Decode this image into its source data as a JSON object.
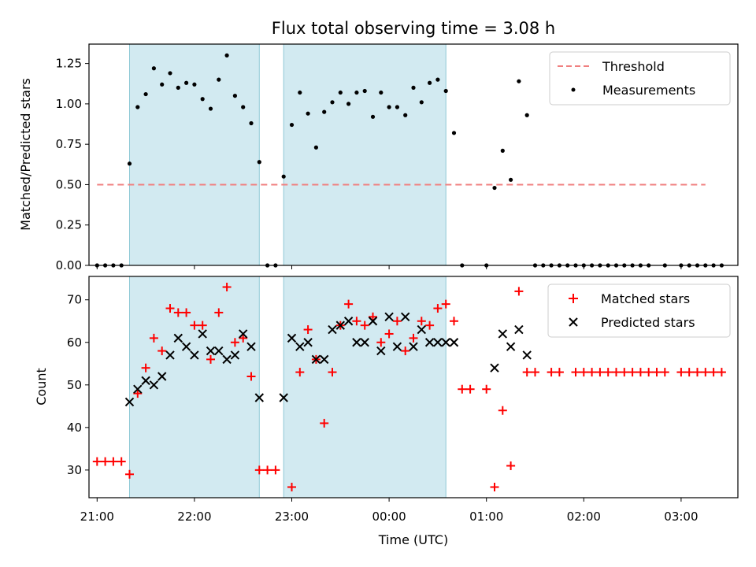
{
  "chart_data": [
    {
      "type": "scatter",
      "title": "Flux total observing time = 3.08 h",
      "ylabel": "Matched/Predicted stars",
      "xlabel": "",
      "ylim": [
        0,
        1.37
      ],
      "xlim": [
        "20:55",
        "03:35"
      ],
      "y_ticks": [
        "0.00",
        "0.25",
        "0.50",
        "0.75",
        "1.00",
        "1.25"
      ],
      "shaded_intervals": [
        [
          "21:20",
          "22:40"
        ],
        [
          "22:55",
          "00:35"
        ]
      ],
      "legend_position": "top-right",
      "threshold": {
        "name": "Threshold",
        "value": 0.5,
        "x_range": [
          "21:00",
          "03:15"
        ],
        "color": "#f08080"
      },
      "series": [
        {
          "name": "Measurements",
          "color": "#000000",
          "points": [
            [
              "21:00",
              0.0
            ],
            [
              "21:05",
              0.0
            ],
            [
              "21:10",
              0.0
            ],
            [
              "21:15",
              0.0
            ],
            [
              "21:20",
              0.63
            ],
            [
              "21:25",
              0.98
            ],
            [
              "21:30",
              1.06
            ],
            [
              "21:35",
              1.22
            ],
            [
              "21:40",
              1.12
            ],
            [
              "21:45",
              1.19
            ],
            [
              "21:50",
              1.1
            ],
            [
              "21:55",
              1.13
            ],
            [
              "22:00",
              1.12
            ],
            [
              "22:05",
              1.03
            ],
            [
              "22:10",
              0.97
            ],
            [
              "22:15",
              1.15
            ],
            [
              "22:20",
              1.3
            ],
            [
              "22:25",
              1.05
            ],
            [
              "22:30",
              0.98
            ],
            [
              "22:35",
              0.88
            ],
            [
              "22:40",
              0.64
            ],
            [
              "22:45",
              0.0
            ],
            [
              "22:50",
              0.0
            ],
            [
              "22:55",
              0.55
            ],
            [
              "23:00",
              0.87
            ],
            [
              "23:05",
              1.07
            ],
            [
              "23:10",
              0.94
            ],
            [
              "23:15",
              0.73
            ],
            [
              "23:20",
              0.95
            ],
            [
              "23:25",
              1.01
            ],
            [
              "23:30",
              1.07
            ],
            [
              "23:35",
              1.0
            ],
            [
              "23:40",
              1.07
            ],
            [
              "23:45",
              1.08
            ],
            [
              "23:50",
              0.92
            ],
            [
              "23:55",
              1.07
            ],
            [
              "00:00",
              0.98
            ],
            [
              "00:05",
              0.98
            ],
            [
              "00:10",
              0.93
            ],
            [
              "00:15",
              1.1
            ],
            [
              "00:20",
              1.01
            ],
            [
              "00:25",
              1.13
            ],
            [
              "00:30",
              1.15
            ],
            [
              "00:35",
              1.08
            ],
            [
              "00:40",
              0.82
            ],
            [
              "00:45",
              0.0
            ],
            [
              "01:00",
              0.0
            ],
            [
              "01:05",
              0.48
            ],
            [
              "01:10",
              0.71
            ],
            [
              "01:15",
              0.53
            ],
            [
              "01:20",
              1.14
            ],
            [
              "01:25",
              0.93
            ],
            [
              "01:30",
              0.0
            ],
            [
              "01:35",
              0.0
            ],
            [
              "01:40",
              0.0
            ],
            [
              "01:45",
              0.0
            ],
            [
              "01:50",
              0.0
            ],
            [
              "01:55",
              0.0
            ],
            [
              "02:00",
              0.0
            ],
            [
              "02:05",
              0.0
            ],
            [
              "02:10",
              0.0
            ],
            [
              "02:15",
              0.0
            ],
            [
              "02:20",
              0.0
            ],
            [
              "02:25",
              0.0
            ],
            [
              "02:30",
              0.0
            ],
            [
              "02:35",
              0.0
            ],
            [
              "02:40",
              0.0
            ],
            [
              "02:50",
              0.0
            ],
            [
              "03:00",
              0.0
            ],
            [
              "03:05",
              0.0
            ],
            [
              "03:10",
              0.0
            ],
            [
              "03:15",
              0.0
            ],
            [
              "03:20",
              0.0
            ],
            [
              "03:25",
              0.0
            ]
          ]
        }
      ]
    },
    {
      "type": "scatter",
      "title": "",
      "xlabel": "Time (UTC)",
      "ylabel": "Count",
      "ylim": [
        23.5,
        75.5
      ],
      "xlim": [
        "20:55",
        "03:35"
      ],
      "x_ticks": [
        "21:00",
        "22:00",
        "23:00",
        "00:00",
        "01:00",
        "02:00",
        "03:00"
      ],
      "y_ticks": [
        "30",
        "40",
        "50",
        "60",
        "70"
      ],
      "shaded_intervals": [
        [
          "21:20",
          "22:40"
        ],
        [
          "22:55",
          "00:35"
        ]
      ],
      "legend_position": "top-right",
      "series": [
        {
          "name": "Matched stars",
          "color": "#ff0000",
          "marker": "+",
          "points": [
            [
              "21:00",
              32
            ],
            [
              "21:05",
              32
            ],
            [
              "21:10",
              32
            ],
            [
              "21:15",
              32
            ],
            [
              "21:20",
              29
            ],
            [
              "21:25",
              48
            ],
            [
              "21:30",
              54
            ],
            [
              "21:35",
              61
            ],
            [
              "21:40",
              58
            ],
            [
              "21:45",
              68
            ],
            [
              "21:50",
              67
            ],
            [
              "21:55",
              67
            ],
            [
              "22:00",
              64
            ],
            [
              "22:05",
              64
            ],
            [
              "22:10",
              56
            ],
            [
              "22:15",
              67
            ],
            [
              "22:20",
              73
            ],
            [
              "22:25",
              60
            ],
            [
              "22:30",
              61
            ],
            [
              "22:35",
              52
            ],
            [
              "22:40",
              30
            ],
            [
              "22:45",
              30
            ],
            [
              "22:50",
              30
            ],
            [
              "23:00",
              26
            ],
            [
              "23:05",
              53
            ],
            [
              "23:10",
              63
            ],
            [
              "23:15",
              56
            ],
            [
              "23:20",
              41
            ],
            [
              "23:25",
              53
            ],
            [
              "23:30",
              64
            ],
            [
              "23:35",
              69
            ],
            [
              "23:40",
              65
            ],
            [
              "23:45",
              64
            ],
            [
              "23:50",
              66
            ],
            [
              "23:55",
              60
            ],
            [
              "00:00",
              62
            ],
            [
              "00:05",
              65
            ],
            [
              "00:10",
              58
            ],
            [
              "00:15",
              61
            ],
            [
              "00:20",
              65
            ],
            [
              "00:25",
              64
            ],
            [
              "00:30",
              68
            ],
            [
              "00:35",
              69
            ],
            [
              "00:40",
              65
            ],
            [
              "00:45",
              49
            ],
            [
              "00:50",
              49
            ],
            [
              "01:00",
              49
            ],
            [
              "01:05",
              26
            ],
            [
              "01:10",
              44
            ],
            [
              "01:15",
              31
            ],
            [
              "01:20",
              72
            ],
            [
              "01:25",
              53
            ],
            [
              "01:30",
              53
            ],
            [
              "01:40",
              53
            ],
            [
              "01:45",
              53
            ],
            [
              "01:55",
              53
            ],
            [
              "02:00",
              53
            ],
            [
              "02:05",
              53
            ],
            [
              "02:10",
              53
            ],
            [
              "02:15",
              53
            ],
            [
              "02:20",
              53
            ],
            [
              "02:25",
              53
            ],
            [
              "02:30",
              53
            ],
            [
              "02:35",
              53
            ],
            [
              "02:40",
              53
            ],
            [
              "02:45",
              53
            ],
            [
              "02:50",
              53
            ],
            [
              "03:00",
              53
            ],
            [
              "03:05",
              53
            ],
            [
              "03:10",
              53
            ],
            [
              "03:15",
              53
            ],
            [
              "03:20",
              53
            ],
            [
              "03:25",
              53
            ]
          ]
        },
        {
          "name": "Predicted stars",
          "color": "#000000",
          "marker": "x",
          "points": [
            [
              "21:20",
              46
            ],
            [
              "21:25",
              49
            ],
            [
              "21:30",
              51
            ],
            [
              "21:35",
              50
            ],
            [
              "21:40",
              52
            ],
            [
              "21:45",
              57
            ],
            [
              "21:50",
              61
            ],
            [
              "21:55",
              59
            ],
            [
              "22:00",
              57
            ],
            [
              "22:05",
              62
            ],
            [
              "22:10",
              58
            ],
            [
              "22:15",
              58
            ],
            [
              "22:20",
              56
            ],
            [
              "22:25",
              57
            ],
            [
              "22:30",
              62
            ],
            [
              "22:35",
              59
            ],
            [
              "22:40",
              47
            ],
            [
              "22:55",
              47
            ],
            [
              "23:00",
              61
            ],
            [
              "23:05",
              59
            ],
            [
              "23:10",
              60
            ],
            [
              "23:15",
              56
            ],
            [
              "23:20",
              56
            ],
            [
              "23:25",
              63
            ],
            [
              "23:30",
              64
            ],
            [
              "23:35",
              65
            ],
            [
              "23:40",
              60
            ],
            [
              "23:45",
              60
            ],
            [
              "23:50",
              65
            ],
            [
              "23:55",
              58
            ],
            [
              "00:00",
              66
            ],
            [
              "00:05",
              59
            ],
            [
              "00:10",
              66
            ],
            [
              "00:15",
              59
            ],
            [
              "00:20",
              63
            ],
            [
              "00:25",
              60
            ],
            [
              "00:30",
              60
            ],
            [
              "00:35",
              60
            ],
            [
              "00:40",
              60
            ],
            [
              "01:05",
              54
            ],
            [
              "01:10",
              62
            ],
            [
              "01:15",
              59
            ],
            [
              "01:20",
              63
            ],
            [
              "01:25",
              57
            ]
          ]
        }
      ]
    }
  ]
}
